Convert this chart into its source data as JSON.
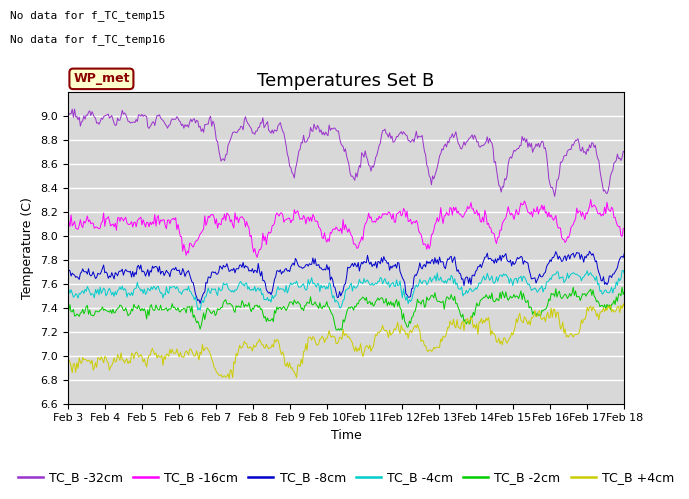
{
  "title": "Temperatures Set B",
  "ylabel": "Temperature (C)",
  "xlabel": "Time",
  "annotation_lines": [
    "No data for f_TC_temp15",
    "No data for f_TC_temp16"
  ],
  "wp_met_label": "WP_met",
  "ylim": [
    6.6,
    9.2
  ],
  "xtick_labels": [
    "Feb 3",
    "Feb 4",
    "Feb 5",
    "Feb 6",
    "Feb 7",
    "Feb 8",
    "Feb 9",
    "Feb 10",
    "Feb 11",
    "Feb 12",
    "Feb 13",
    "Feb 14",
    "Feb 15",
    "Feb 16",
    "Feb 17",
    "Feb 18"
  ],
  "series": [
    {
      "label": "TC_B -32cm",
      "color": "#9933cc"
    },
    {
      "label": "TC_B -16cm",
      "color": "#ff00ff"
    },
    {
      "label": "TC_B -8cm",
      "color": "#0000cc"
    },
    {
      "label": "TC_B -4cm",
      "color": "#00cccc"
    },
    {
      "label": "TC_B -2cm",
      "color": "#00cc00"
    },
    {
      "label": "TC_B +4cm",
      "color": "#cccc00"
    }
  ],
  "background_color": "#d8d8d8",
  "grid_color": "#ffffff",
  "title_fontsize": 13,
  "legend_fontsize": 9,
  "axis_fontsize": 9,
  "tick_fontsize": 8
}
